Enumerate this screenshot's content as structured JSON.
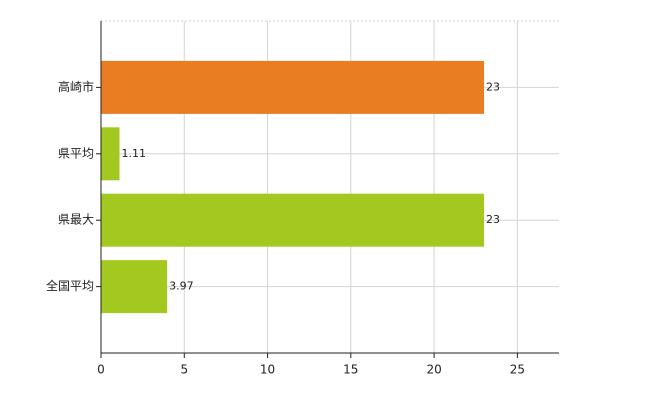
{
  "chart_data": {
    "type": "hbar",
    "categories": [
      "高崎市",
      "県平均",
      "県最大",
      "全国平均"
    ],
    "values": [
      23,
      1.11,
      23,
      3.97
    ],
    "colors": [
      "#e87d22",
      "#a3c920",
      "#a3c920",
      "#a3c920"
    ],
    "xlim": [
      0,
      27.5
    ],
    "xticks": [
      0,
      5,
      10,
      15,
      20,
      25
    ],
    "grid": true
  }
}
